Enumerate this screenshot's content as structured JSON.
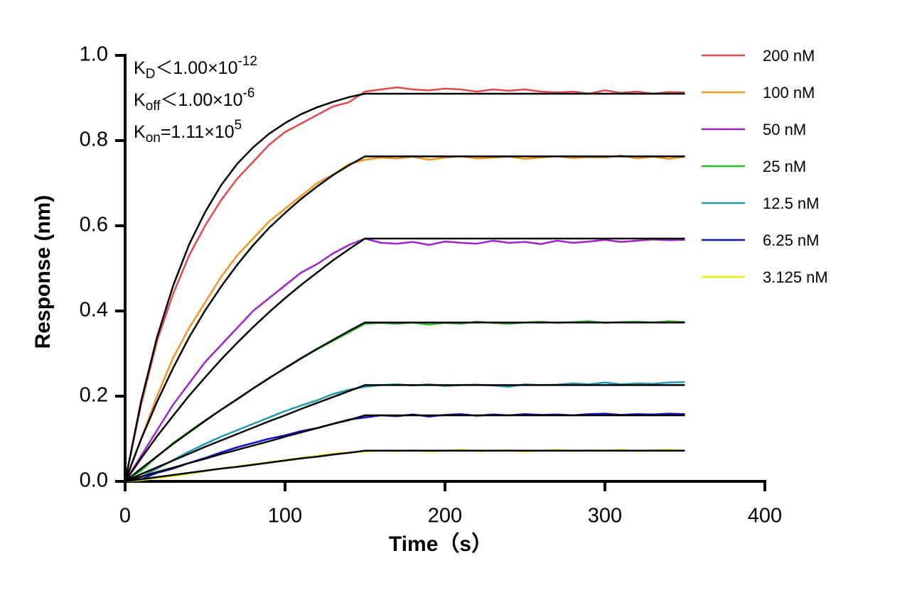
{
  "chart_data": {
    "type": "line",
    "xlabel": "Time（s）",
    "ylabel": "Response (nm)",
    "annotations": [
      {
        "base": "K",
        "sub": "D",
        "text": "＜1.00×10",
        "sup": "-12"
      },
      {
        "base": "K",
        "sub": "off",
        "text": "＜1.00×10",
        "sup": "-6"
      },
      {
        "base": "K",
        "sub": "on",
        "text": "=1.11×10",
        "sup": "5"
      }
    ],
    "x": [
      0,
      10,
      20,
      30,
      40,
      50,
      60,
      70,
      80,
      90,
      100,
      110,
      120,
      130,
      140,
      150,
      160,
      170,
      180,
      190,
      200,
      210,
      220,
      230,
      240,
      250,
      260,
      270,
      280,
      290,
      300,
      310,
      320,
      330,
      340,
      350
    ],
    "xlim": [
      0,
      400
    ],
    "xticks": [
      0,
      100,
      200,
      300,
      400
    ],
    "ylim": [
      0,
      1
    ],
    "yticks": [
      {
        "value": 0,
        "label": "0.0"
      },
      0.2,
      0.4,
      0.6,
      0.8,
      {
        "value": 1,
        "label": "1.0"
      }
    ],
    "legend": "right",
    "series": [
      {
        "name": "200 nM",
        "color": "#e8474a",
        "values": [
          0,
          0.18,
          0.33,
          0.44,
          0.53,
          0.6,
          0.66,
          0.71,
          0.75,
          0.79,
          0.82,
          0.84,
          0.86,
          0.88,
          0.89,
          0.915,
          0.92,
          0.925,
          0.92,
          0.918,
          0.922,
          0.92,
          0.915,
          0.92,
          0.917,
          0.92,
          0.915,
          0.913,
          0.915,
          0.91,
          0.918,
          0.912,
          0.915,
          0.91,
          0.914,
          0.913
        ]
      },
      {
        "name": "100 nM",
        "color": "#f7941d",
        "values": [
          0,
          0.1,
          0.2,
          0.29,
          0.36,
          0.42,
          0.48,
          0.53,
          0.57,
          0.61,
          0.64,
          0.67,
          0.7,
          0.72,
          0.745,
          0.755,
          0.76,
          0.758,
          0.762,
          0.755,
          0.76,
          0.763,
          0.758,
          0.76,
          0.762,
          0.757,
          0.76,
          0.763,
          0.759,
          0.761,
          0.76,
          0.765,
          0.758,
          0.762,
          0.757,
          0.762
        ]
      },
      {
        "name": "50 nM",
        "color": "#a21fd2",
        "values": [
          0,
          0.06,
          0.12,
          0.18,
          0.23,
          0.28,
          0.32,
          0.36,
          0.4,
          0.43,
          0.46,
          0.49,
          0.51,
          0.535,
          0.555,
          0.57,
          0.56,
          0.558,
          0.562,
          0.555,
          0.563,
          0.56,
          0.558,
          0.565,
          0.56,
          0.562,
          0.557,
          0.565,
          0.56,
          0.563,
          0.567,
          0.562,
          0.565,
          0.568,
          0.566,
          0.567
        ]
      },
      {
        "name": "25 nM",
        "color": "#1cc81c",
        "values": [
          0,
          0.025,
          0.058,
          0.09,
          0.117,
          0.143,
          0.168,
          0.192,
          0.218,
          0.243,
          0.265,
          0.288,
          0.31,
          0.33,
          0.35,
          0.37,
          0.372,
          0.37,
          0.373,
          0.368,
          0.372,
          0.37,
          0.375,
          0.372,
          0.37,
          0.373,
          0.375,
          0.372,
          0.374,
          0.376,
          0.372,
          0.374,
          0.375,
          0.373,
          0.376,
          0.374
        ]
      },
      {
        "name": "12.5 nM",
        "color": "#1a9bb0",
        "values": [
          0,
          0.01,
          0.03,
          0.05,
          0.07,
          0.088,
          0.105,
          0.12,
          0.135,
          0.15,
          0.165,
          0.178,
          0.19,
          0.205,
          0.215,
          0.222,
          0.226,
          0.228,
          0.225,
          0.228,
          0.224,
          0.226,
          0.227,
          0.225,
          0.222,
          0.228,
          0.226,
          0.227,
          0.23,
          0.228,
          0.232,
          0.228,
          0.23,
          0.229,
          0.232,
          0.233
        ]
      },
      {
        "name": "6.25 nM",
        "color": "#0a14d0",
        "values": [
          0,
          0.005,
          0.02,
          0.03,
          0.043,
          0.055,
          0.068,
          0.08,
          0.09,
          0.1,
          0.108,
          0.118,
          0.125,
          0.135,
          0.145,
          0.15,
          0.155,
          0.153,
          0.157,
          0.152,
          0.156,
          0.158,
          0.154,
          0.157,
          0.155,
          0.158,
          0.156,
          0.157,
          0.155,
          0.158,
          0.159,
          0.156,
          0.158,
          0.157,
          0.159,
          0.158
        ]
      },
      {
        "name": "3.125 nM",
        "color": "#f0f000",
        "values": [
          0,
          0.003,
          0.008,
          0.012,
          0.018,
          0.024,
          0.03,
          0.035,
          0.04,
          0.045,
          0.05,
          0.055,
          0.06,
          0.065,
          0.068,
          0.07,
          0.072,
          0.071,
          0.073,
          0.07,
          0.072,
          0.074,
          0.071,
          0.072,
          0.073,
          0.07,
          0.072,
          0.074,
          0.071,
          0.073,
          0.072,
          0.074,
          0.071,
          0.073,
          0.074,
          0.072
        ]
      }
    ],
    "fit_series": [
      {
        "color": "#000000",
        "values": [
          0,
          0.188,
          0.339,
          0.459,
          0.556,
          0.632,
          0.695,
          0.745,
          0.784,
          0.816,
          0.841,
          0.862,
          0.878,
          0.891,
          0.902,
          0.91,
          0.91,
          0.91,
          0.91,
          0.91,
          0.91,
          0.91,
          0.91,
          0.91,
          0.91,
          0.91,
          0.91,
          0.91,
          0.91,
          0.91,
          0.91,
          0.91,
          0.91,
          0.91,
          0.91,
          0.91
        ]
      },
      {
        "color": "#000000",
        "values": [
          0,
          0.099,
          0.187,
          0.266,
          0.338,
          0.401,
          0.457,
          0.508,
          0.554,
          0.595,
          0.63,
          0.663,
          0.692,
          0.719,
          0.742,
          0.763,
          0.763,
          0.763,
          0.763,
          0.763,
          0.763,
          0.763,
          0.763,
          0.763,
          0.763,
          0.763,
          0.763,
          0.763,
          0.763,
          0.763,
          0.763,
          0.763,
          0.763,
          0.763,
          0.763,
          0.763
        ]
      },
      {
        "color": "#000000",
        "values": [
          0,
          0.054,
          0.106,
          0.154,
          0.201,
          0.244,
          0.286,
          0.325,
          0.362,
          0.397,
          0.43,
          0.461,
          0.49,
          0.519,
          0.545,
          0.57,
          0.57,
          0.57,
          0.57,
          0.57,
          0.57,
          0.57,
          0.57,
          0.57,
          0.57,
          0.57,
          0.57,
          0.57,
          0.57,
          0.57,
          0.57,
          0.57,
          0.57,
          0.57,
          0.57,
          0.57
        ]
      },
      {
        "color": "#000000",
        "values": [
          0,
          0.03,
          0.059,
          0.088,
          0.115,
          0.142,
          0.168,
          0.193,
          0.218,
          0.242,
          0.266,
          0.289,
          0.311,
          0.332,
          0.353,
          0.373,
          0.373,
          0.373,
          0.373,
          0.373,
          0.373,
          0.373,
          0.373,
          0.373,
          0.373,
          0.373,
          0.373,
          0.373,
          0.373,
          0.373,
          0.373,
          0.373,
          0.373,
          0.373,
          0.373,
          0.373
        ]
      },
      {
        "color": "#000000",
        "values": [
          0,
          0.017,
          0.033,
          0.049,
          0.065,
          0.081,
          0.096,
          0.111,
          0.126,
          0.141,
          0.155,
          0.17,
          0.184,
          0.198,
          0.212,
          0.226,
          0.226,
          0.226,
          0.226,
          0.226,
          0.226,
          0.226,
          0.226,
          0.226,
          0.226,
          0.226,
          0.226,
          0.226,
          0.226,
          0.226,
          0.226,
          0.226,
          0.226,
          0.226,
          0.226,
          0.226
        ]
      },
      {
        "color": "#000000",
        "values": [
          0,
          0.011,
          0.022,
          0.032,
          0.043,
          0.053,
          0.064,
          0.074,
          0.084,
          0.094,
          0.105,
          0.115,
          0.125,
          0.135,
          0.144,
          0.155,
          0.155,
          0.155,
          0.155,
          0.155,
          0.155,
          0.155,
          0.155,
          0.155,
          0.155,
          0.155,
          0.155,
          0.155,
          0.155,
          0.155,
          0.155,
          0.155,
          0.155,
          0.155,
          0.155,
          0.155
        ]
      },
      {
        "color": "#000000",
        "values": [
          0,
          0.005,
          0.01,
          0.015,
          0.02,
          0.025,
          0.03,
          0.034,
          0.039,
          0.044,
          0.049,
          0.054,
          0.058,
          0.063,
          0.067,
          0.072,
          0.072,
          0.072,
          0.072,
          0.072,
          0.072,
          0.072,
          0.072,
          0.072,
          0.072,
          0.072,
          0.072,
          0.072,
          0.072,
          0.072,
          0.072,
          0.072,
          0.072,
          0.072,
          0.072,
          0.072
        ]
      }
    ]
  }
}
